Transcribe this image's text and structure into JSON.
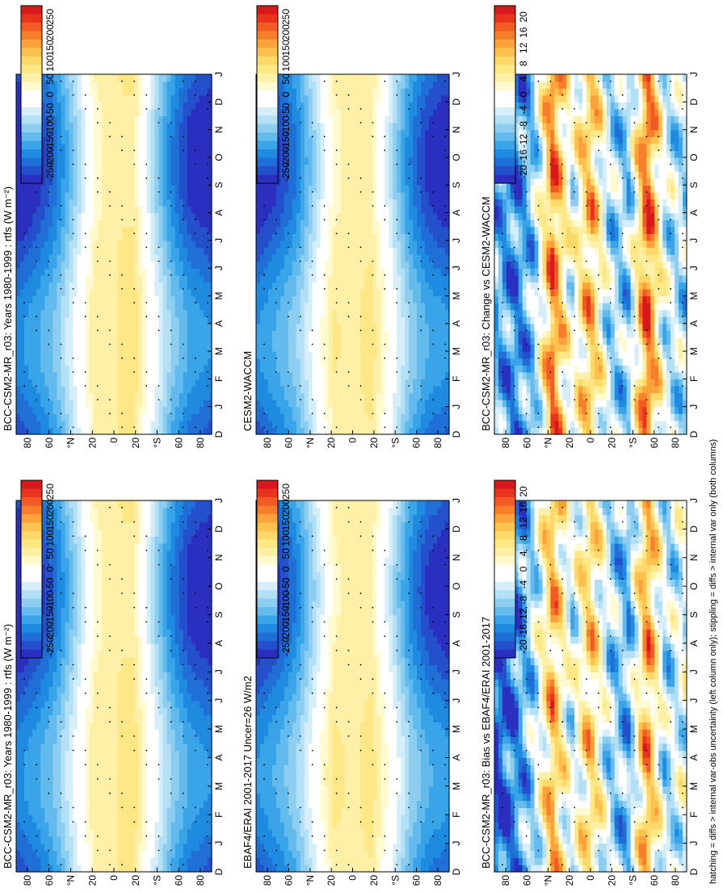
{
  "footnote": "hatching = diffs > internal var-obs uncertainty (left column only); stippling = diffs > internal var only (both columns)",
  "colors": {
    "scale_large": [
      "#d7191c",
      "#e8341d",
      "#f15a22",
      "#f77e2a",
      "#fba33a",
      "#fdc150",
      "#fed96a",
      "#fee785",
      "#fff0a8",
      "#fffacf",
      "#ffffff",
      "#ffffff",
      "#d5eef9",
      "#b3e0f5",
      "#8dcdf0",
      "#63baec",
      "#3aa4e8",
      "#1e8ae0",
      "#1f6fd6",
      "#2550cc",
      "#2b2fbf"
    ],
    "scale_small": [
      "#d7191c",
      "#e8341d",
      "#f15a22",
      "#f77e2a",
      "#fba33a",
      "#fdc150",
      "#fed96a",
      "#fee785",
      "#fff0a8",
      "#fffacf",
      "#ffffff",
      "#ffffff",
      "#d5eef9",
      "#b3e0f5",
      "#8dcdf0",
      "#63baec",
      "#3aa4e8",
      "#1e8ae0",
      "#1f6fd6",
      "#2550cc",
      "#2b2fbf"
    ]
  },
  "chart_data": [
    {
      "type": "heatmap",
      "title": "BCC-CSM2-MR_r03: Years 1980-1999 : rtfs (W m⁻²)",
      "month_labels": [
        "D",
        "J",
        "F",
        "M",
        "A",
        "M",
        "J",
        "J",
        "A",
        "S",
        "O",
        "N",
        "D",
        "J"
      ],
      "lat_labels": [
        "80",
        "60",
        "°N",
        "20",
        "0",
        "20",
        "°S",
        "60",
        "80"
      ],
      "colorbar": [
        "250",
        "200",
        "150",
        "100",
        "50",
        "0",
        "-50",
        "-100",
        "-150",
        "-200",
        "-250"
      ],
      "lat_profile_w_m2": [
        -230,
        -200,
        -150,
        -60,
        40,
        60,
        70,
        -40,
        -140,
        -200,
        -220
      ],
      "seasonal_shift_deg": 8
    },
    {
      "type": "heatmap",
      "title": "BCC-CSM2-MR_r03: Years 1980-1999 : rtfs (W m⁻²)",
      "month_labels": [
        "D",
        "J",
        "F",
        "M",
        "A",
        "M",
        "J",
        "J",
        "A",
        "S",
        "O",
        "N",
        "D",
        "J"
      ],
      "lat_labels": [
        "80",
        "60",
        "°N",
        "20",
        "0",
        "20",
        "°S",
        "60",
        "80"
      ],
      "colorbar": [
        "250",
        "200",
        "150",
        "100",
        "50",
        "0",
        "-50",
        "-100",
        "-150",
        "-200",
        "-250"
      ],
      "lat_profile_w_m2": [
        -230,
        -200,
        -150,
        -60,
        40,
        60,
        70,
        -40,
        -140,
        -200,
        -220
      ],
      "seasonal_shift_deg": 8
    },
    {
      "type": "heatmap",
      "title": "EBAF4/ERAI 2001-2017 Uncer=26 W/m2",
      "month_labels": [
        "D",
        "J",
        "F",
        "M",
        "A",
        "M",
        "J",
        "J",
        "A",
        "S",
        "O",
        "N",
        "D",
        "J"
      ],
      "lat_labels": [
        "80",
        "60",
        "°N",
        "20",
        "0",
        "20",
        "°S",
        "60",
        "80"
      ],
      "colorbar": [
        "250",
        "200",
        "150",
        "100",
        "50",
        "0",
        "-50",
        "-100",
        "-150",
        "-200",
        "-250"
      ],
      "lat_profile_w_m2": [
        -220,
        -190,
        -140,
        -50,
        50,
        55,
        60,
        -30,
        -130,
        -190,
        -210
      ],
      "seasonal_shift_deg": 8
    },
    {
      "type": "heatmap",
      "title": "CESM2-WACCM",
      "month_labels": [
        "D",
        "J",
        "F",
        "M",
        "A",
        "M",
        "J",
        "J",
        "A",
        "S",
        "O",
        "N",
        "D",
        "J"
      ],
      "lat_labels": [
        "80",
        "60",
        "°N",
        "20",
        "0",
        "20",
        "°S",
        "60",
        "80"
      ],
      "colorbar": [
        "250",
        "200",
        "150",
        "100",
        "50",
        "0",
        "-50",
        "-100",
        "-150",
        "-200",
        "-250"
      ],
      "lat_profile_w_m2": [
        -220,
        -190,
        -145,
        -55,
        45,
        55,
        60,
        -35,
        -135,
        -195,
        -215
      ],
      "seasonal_shift_deg": 8
    },
    {
      "type": "heatmap",
      "title": "BCC-CSM2-MR_r03: Bias vs EBAF4/ERAI 2001-2017",
      "month_labels": [
        "D",
        "J",
        "F",
        "M",
        "A",
        "M",
        "J",
        "J",
        "A",
        "S",
        "O",
        "N",
        "D",
        "J"
      ],
      "lat_labels": [
        "80",
        "60",
        "°N",
        "20",
        "0",
        "20",
        "°S",
        "60",
        "80"
      ],
      "colorbar": [
        "20",
        "16",
        "12",
        "8",
        "4",
        "0",
        "-4",
        "-8",
        "-12",
        "-16",
        "-20"
      ],
      "lat_profile_w_m2": [
        -18,
        -14,
        -6,
        10,
        -4,
        8,
        -6,
        -10,
        12,
        -6,
        -2
      ],
      "seasonal_shift_deg": 0
    },
    {
      "type": "heatmap",
      "title": "BCC-CSM2-MR_r03: Change vs CESM2-WACCM",
      "month_labels": [
        "D",
        "J",
        "F",
        "M",
        "A",
        "M",
        "J",
        "J",
        "A",
        "S",
        "O",
        "N",
        "D",
        "J"
      ],
      "lat_labels": [
        "80",
        "60",
        "°N",
        "20",
        "0",
        "20",
        "°S",
        "60",
        "80"
      ],
      "colorbar": [
        "20",
        "16",
        "12",
        "8",
        "4",
        "0",
        "-4",
        "-8",
        "-12",
        "-16",
        "-20"
      ],
      "lat_profile_w_m2": [
        -10,
        -14,
        -8,
        14,
        -2,
        10,
        -6,
        -8,
        16,
        -4,
        -6
      ],
      "seasonal_shift_deg": 0
    }
  ]
}
